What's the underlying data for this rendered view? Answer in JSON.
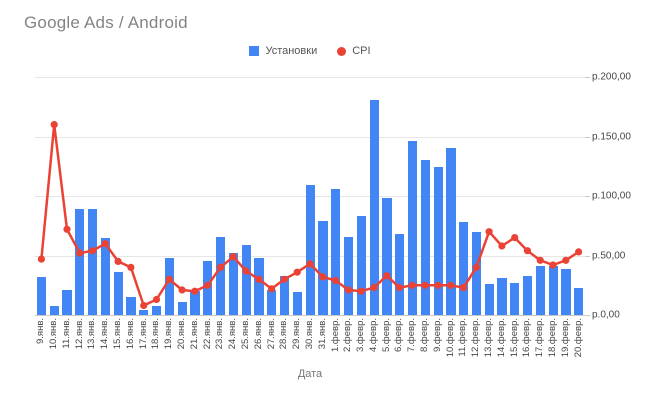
{
  "title": "Google Ads / Android",
  "legend": {
    "items": [
      {
        "label": "Установки",
        "color": "#4285f4",
        "shape": "square"
      },
      {
        "label": "CPI",
        "color": "#ea4335",
        "shape": "circle"
      }
    ],
    "position": "top"
  },
  "chart_data": {
    "type": "bar",
    "subtype": "combo-bar-line",
    "title": "Google Ads / Android",
    "xlabel": "Дата",
    "ylabel": "",
    "grid": true,
    "legend_position": "top",
    "categories": [
      "9.янв.",
      "10.янв.",
      "11.янв.",
      "12.янв.",
      "13.янв.",
      "14.янв.",
      "15.янв.",
      "16.янв.",
      "17.янв.",
      "18.янв.",
      "19.янв.",
      "20.янв.",
      "21.янв.",
      "22.янв.",
      "23.янв.",
      "24.янв.",
      "25.янв.",
      "26.янв.",
      "27.янв.",
      "28.янв.",
      "29.янв.",
      "30.янв.",
      "31.янв.",
      "1.февр.",
      "2.февр.",
      "3.февр.",
      "4.февр.",
      "5.февр.",
      "6.февр.",
      "7.февр.",
      "8.февр.",
      "9.февр.",
      "10.февр.",
      "11.февр.",
      "12.февр.",
      "13.февр.",
      "14.февр.",
      "15.февр.",
      "16.февр.",
      "17.февр.",
      "18.февр.",
      "19.февр.",
      "20.февр."
    ],
    "series": [
      {
        "name": "Установки",
        "type": "bar",
        "color": "#4285f4",
        "values": [
          32,
          8,
          21,
          89,
          89,
          65,
          36,
          15,
          4,
          8,
          48,
          11,
          20,
          45,
          66,
          52,
          59,
          48,
          21,
          33,
          19,
          109,
          79,
          106,
          66,
          83,
          181,
          98,
          68,
          146,
          130,
          124,
          140,
          78,
          70,
          26,
          31,
          27,
          33,
          41,
          41,
          39,
          23
        ]
      },
      {
        "name": "CPI",
        "type": "line",
        "color": "#ea4335",
        "values": [
          47,
          160,
          72,
          52,
          54,
          60,
          45,
          40,
          8,
          13,
          30,
          21,
          20,
          25,
          40,
          49,
          37,
          30,
          22,
          30,
          36,
          43,
          32,
          29,
          21,
          20,
          23,
          33,
          23,
          25,
          25,
          25,
          25,
          23,
          40,
          70,
          58,
          65,
          54,
          46,
          42,
          46,
          53
        ]
      }
    ],
    "y_axis": {
      "side": "right",
      "min": 0,
      "max": 200,
      "ticks": [
        {
          "value": 0,
          "label": "р.0,00"
        },
        {
          "value": 50,
          "label": "р.50,00"
        },
        {
          "value": 100,
          "label": "р.100,00"
        },
        {
          "value": 150,
          "label": "р.150,00"
        },
        {
          "value": 200,
          "label": "р.200,00"
        }
      ]
    },
    "x_axis_title": "Дата"
  }
}
